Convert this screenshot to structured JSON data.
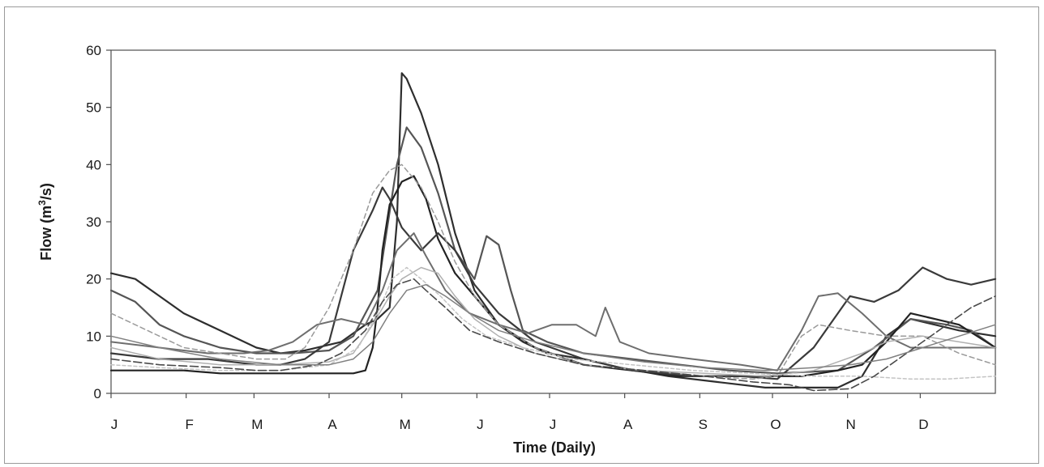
{
  "chart_data": {
    "type": "line",
    "title": "",
    "xlabel": "Time (Daily)",
    "ylabel": "Flow (m³/s)",
    "ylabel_base": "Flow (m",
    "ylabel_sup": "3",
    "ylabel_tail": "/s)",
    "xlim": [
      0,
      365
    ],
    "ylim": [
      0,
      60
    ],
    "y_ticks": [
      0,
      10,
      20,
      30,
      40,
      50,
      60
    ],
    "x_tick_days": [
      0,
      31,
      59,
      90,
      120,
      151,
      181,
      212,
      243,
      273,
      304,
      334
    ],
    "x_tick_labels": [
      "J",
      "F",
      "M",
      "A",
      "M",
      "J",
      "J",
      "A",
      "S",
      "O",
      "N",
      "D"
    ],
    "grid": false,
    "legend": "none",
    "series": [
      {
        "color": "#2e2e2e",
        "width": 2.2,
        "dash": "",
        "points": [
          [
            0,
            21
          ],
          [
            10,
            20
          ],
          [
            20,
            17
          ],
          [
            30,
            14
          ],
          [
            45,
            11
          ],
          [
            60,
            8
          ],
          [
            70,
            7
          ],
          [
            80,
            7.5
          ],
          [
            95,
            9
          ],
          [
            105,
            12
          ],
          [
            110,
            13
          ],
          [
            115,
            15
          ],
          [
            118,
            30
          ],
          [
            120,
            56
          ],
          [
            122,
            55
          ],
          [
            128,
            49
          ],
          [
            135,
            40
          ],
          [
            142,
            28
          ],
          [
            150,
            18
          ],
          [
            160,
            12
          ],
          [
            170,
            9
          ],
          [
            180,
            7
          ],
          [
            195,
            6
          ],
          [
            210,
            4.5
          ],
          [
            230,
            3
          ],
          [
            250,
            2
          ],
          [
            270,
            1
          ],
          [
            285,
            1
          ],
          [
            300,
            1
          ],
          [
            310,
            3
          ],
          [
            320,
            10
          ],
          [
            330,
            13
          ],
          [
            340,
            12
          ],
          [
            350,
            11
          ],
          [
            365,
            10
          ]
        ]
      },
      {
        "color": "#555555",
        "width": 2.2,
        "dash": "",
        "points": [
          [
            0,
            18
          ],
          [
            10,
            16
          ],
          [
            20,
            12
          ],
          [
            30,
            10
          ],
          [
            45,
            8
          ],
          [
            60,
            7
          ],
          [
            75,
            7
          ],
          [
            90,
            7.5
          ],
          [
            100,
            10
          ],
          [
            110,
            18
          ],
          [
            118,
            40
          ],
          [
            122,
            46.5
          ],
          [
            128,
            43
          ],
          [
            135,
            35
          ],
          [
            142,
            25
          ],
          [
            150,
            20
          ],
          [
            155,
            27.5
          ],
          [
            160,
            26
          ],
          [
            165,
            18
          ],
          [
            170,
            11
          ],
          [
            180,
            9
          ],
          [
            195,
            7
          ],
          [
            215,
            6
          ],
          [
            235,
            5
          ],
          [
            255,
            4
          ],
          [
            275,
            3.5
          ],
          [
            300,
            4
          ],
          [
            315,
            8
          ],
          [
            330,
            13
          ],
          [
            345,
            12
          ],
          [
            355,
            11
          ],
          [
            365,
            8
          ]
        ]
      },
      {
        "color": "#222222",
        "width": 2.2,
        "dash": "",
        "points": [
          [
            0,
            4
          ],
          [
            15,
            4
          ],
          [
            30,
            4
          ],
          [
            45,
            3.5
          ],
          [
            60,
            3.5
          ],
          [
            75,
            3.5
          ],
          [
            90,
            3.5
          ],
          [
            100,
            3.5
          ],
          [
            105,
            4
          ],
          [
            108,
            8
          ],
          [
            110,
            15
          ],
          [
            112,
            25
          ],
          [
            115,
            33
          ],
          [
            120,
            37
          ],
          [
            125,
            38
          ],
          [
            130,
            34
          ],
          [
            135,
            27
          ],
          [
            142,
            21
          ],
          [
            150,
            17
          ],
          [
            160,
            12
          ],
          [
            175,
            8
          ],
          [
            195,
            5
          ],
          [
            215,
            4
          ],
          [
            235,
            3
          ],
          [
            255,
            3
          ],
          [
            270,
            3
          ],
          [
            285,
            3
          ],
          [
            300,
            4
          ],
          [
            310,
            5
          ],
          [
            320,
            9
          ],
          [
            330,
            14
          ],
          [
            340,
            13
          ],
          [
            350,
            12
          ],
          [
            365,
            8
          ]
        ]
      },
      {
        "color": "#3a3a3a",
        "width": 2.2,
        "dash": "",
        "points": [
          [
            0,
            7
          ],
          [
            20,
            6
          ],
          [
            40,
            6
          ],
          [
            60,
            5
          ],
          [
            70,
            5
          ],
          [
            80,
            6
          ],
          [
            90,
            9
          ],
          [
            100,
            25
          ],
          [
            108,
            32
          ],
          [
            112,
            36
          ],
          [
            115,
            34
          ],
          [
            120,
            29
          ],
          [
            128,
            25
          ],
          [
            135,
            28
          ],
          [
            142,
            25
          ],
          [
            150,
            19
          ],
          [
            160,
            14
          ],
          [
            175,
            9
          ],
          [
            195,
            6
          ],
          [
            215,
            4
          ],
          [
            240,
            3
          ],
          [
            260,
            3
          ],
          [
            275,
            2.5
          ],
          [
            290,
            8
          ],
          [
            300,
            14
          ],
          [
            305,
            17
          ],
          [
            315,
            16
          ],
          [
            325,
            18
          ],
          [
            335,
            22
          ],
          [
            345,
            20
          ],
          [
            355,
            19
          ],
          [
            365,
            20
          ]
        ]
      },
      {
        "color": "#6e6e6e",
        "width": 2.0,
        "dash": "",
        "points": [
          [
            0,
            9
          ],
          [
            20,
            8
          ],
          [
            40,
            7
          ],
          [
            55,
            7
          ],
          [
            65,
            7.5
          ],
          [
            75,
            9
          ],
          [
            85,
            12
          ],
          [
            95,
            13
          ],
          [
            105,
            12
          ],
          [
            112,
            18
          ],
          [
            118,
            25
          ],
          [
            125,
            28
          ],
          [
            130,
            24
          ],
          [
            138,
            18
          ],
          [
            148,
            14
          ],
          [
            160,
            12
          ],
          [
            172,
            10.5
          ],
          [
            182,
            12
          ],
          [
            192,
            12
          ],
          [
            200,
            10
          ],
          [
            204,
            15
          ],
          [
            210,
            9
          ],
          [
            222,
            7
          ],
          [
            240,
            6
          ],
          [
            260,
            5
          ],
          [
            275,
            4
          ],
          [
            285,
            11
          ],
          [
            292,
            17
          ],
          [
            300,
            17.5
          ],
          [
            310,
            14
          ],
          [
            320,
            10
          ],
          [
            330,
            8
          ],
          [
            345,
            8
          ],
          [
            365,
            8
          ]
        ]
      },
      {
        "color": "#9a9a9a",
        "width": 1.5,
        "dash": "6 4",
        "points": [
          [
            0,
            14
          ],
          [
            15,
            11
          ],
          [
            30,
            8
          ],
          [
            45,
            7
          ],
          [
            60,
            6
          ],
          [
            72,
            6
          ],
          [
            80,
            8
          ],
          [
            90,
            15
          ],
          [
            100,
            25
          ],
          [
            108,
            35
          ],
          [
            115,
            39
          ],
          [
            120,
            40
          ],
          [
            128,
            36
          ],
          [
            135,
            30
          ],
          [
            142,
            23
          ],
          [
            150,
            17
          ],
          [
            160,
            12
          ],
          [
            175,
            8
          ],
          [
            195,
            5
          ],
          [
            220,
            4
          ],
          [
            245,
            3
          ],
          [
            265,
            2.5
          ],
          [
            275,
            3
          ],
          [
            285,
            10
          ],
          [
            292,
            12
          ],
          [
            305,
            11
          ],
          [
            320,
            10
          ],
          [
            335,
            10
          ],
          [
            350,
            7
          ],
          [
            365,
            5
          ]
        ]
      },
      {
        "color": "#b0b0b0",
        "width": 1.5,
        "dash": "",
        "points": [
          [
            0,
            8
          ],
          [
            20,
            6
          ],
          [
            45,
            5
          ],
          [
            70,
            5
          ],
          [
            90,
            5.5
          ],
          [
            100,
            7
          ],
          [
            108,
            12
          ],
          [
            115,
            17
          ],
          [
            120,
            20
          ],
          [
            128,
            22
          ],
          [
            135,
            21
          ],
          [
            142,
            17
          ],
          [
            150,
            13
          ],
          [
            160,
            10
          ],
          [
            175,
            7
          ],
          [
            195,
            5
          ],
          [
            220,
            4
          ],
          [
            245,
            3.5
          ],
          [
            270,
            3
          ],
          [
            290,
            4
          ],
          [
            310,
            7
          ],
          [
            320,
            9
          ],
          [
            335,
            10
          ],
          [
            350,
            9
          ],
          [
            365,
            8
          ]
        ]
      },
      {
        "color": "#c4c4c4",
        "width": 1.5,
        "dash": "4 3",
        "points": [
          [
            0,
            5
          ],
          [
            20,
            4.5
          ],
          [
            45,
            4
          ],
          [
            70,
            4
          ],
          [
            90,
            5
          ],
          [
            102,
            8
          ],
          [
            110,
            14
          ],
          [
            116,
            20
          ],
          [
            122,
            22
          ],
          [
            128,
            20
          ],
          [
            136,
            17
          ],
          [
            145,
            13
          ],
          [
            155,
            10
          ],
          [
            170,
            8
          ],
          [
            190,
            6
          ],
          [
            215,
            5
          ],
          [
            240,
            4
          ],
          [
            265,
            3.5
          ],
          [
            290,
            3
          ],
          [
            310,
            3
          ],
          [
            330,
            2.5
          ],
          [
            345,
            2.5
          ],
          [
            365,
            3
          ]
        ]
      },
      {
        "color": "#4a4a4a",
        "width": 1.6,
        "dash": "10 4",
        "points": [
          [
            0,
            6
          ],
          [
            20,
            5
          ],
          [
            45,
            4.5
          ],
          [
            60,
            4
          ],
          [
            70,
            4
          ],
          [
            85,
            5
          ],
          [
            95,
            7
          ],
          [
            105,
            11
          ],
          [
            112,
            16
          ],
          [
            118,
            19
          ],
          [
            125,
            20
          ],
          [
            130,
            18
          ],
          [
            138,
            15
          ],
          [
            148,
            11
          ],
          [
            160,
            9
          ],
          [
            175,
            7
          ],
          [
            195,
            5
          ],
          [
            220,
            4
          ],
          [
            245,
            3
          ],
          [
            265,
            2
          ],
          [
            280,
            1.5
          ],
          [
            290,
            0.5
          ],
          [
            305,
            0.8
          ],
          [
            315,
            3
          ],
          [
            325,
            6
          ],
          [
            335,
            9
          ],
          [
            345,
            12
          ],
          [
            355,
            15
          ],
          [
            365,
            17
          ]
        ]
      },
      {
        "color": "#808080",
        "width": 1.5,
        "dash": "",
        "points": [
          [
            0,
            10
          ],
          [
            20,
            8
          ],
          [
            45,
            6
          ],
          [
            70,
            5
          ],
          [
            90,
            5
          ],
          [
            100,
            6
          ],
          [
            108,
            9
          ],
          [
            115,
            14
          ],
          [
            122,
            18
          ],
          [
            130,
            19
          ],
          [
            138,
            17
          ],
          [
            148,
            14
          ],
          [
            160,
            11
          ],
          [
            175,
            9
          ],
          [
            195,
            7
          ],
          [
            220,
            5.5
          ],
          [
            245,
            4.5
          ],
          [
            270,
            4
          ],
          [
            290,
            4.5
          ],
          [
            305,
            5
          ],
          [
            320,
            6
          ],
          [
            335,
            8
          ],
          [
            350,
            10
          ],
          [
            365,
            12
          ]
        ]
      }
    ]
  }
}
